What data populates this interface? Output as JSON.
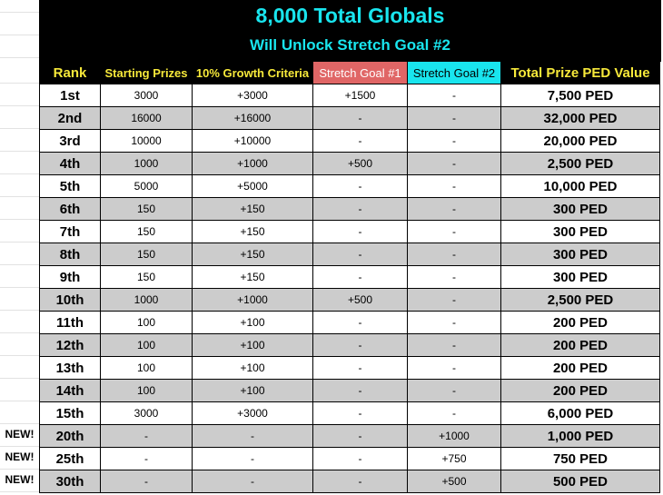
{
  "banner": {
    "title": "8,000 Total Globals",
    "subtitle": "Will Unlock Stretch Goal #2"
  },
  "headers": {
    "rank": "Rank",
    "starting": "Starting Prizes",
    "growth": "10% Growth Criteria",
    "sg1": "Stretch Goal #1",
    "sg2": "Stretch Goal #2",
    "total": "Total Prize PED Value"
  },
  "colors": {
    "accent_cyan": "#19e5ee",
    "header_yellow": "#f7e93a",
    "stretch1_red": "#e06666",
    "row_gray": "#cccccc"
  },
  "rows": [
    {
      "rank": "1st",
      "starting": "3000",
      "growth": "+3000",
      "sg1": "+1500",
      "sg2": "-",
      "total": "7,500 PED",
      "new": ""
    },
    {
      "rank": "2nd",
      "starting": "16000",
      "growth": "+16000",
      "sg1": "-",
      "sg2": "-",
      "total": "32,000 PED",
      "new": ""
    },
    {
      "rank": "3rd",
      "starting": "10000",
      "growth": "+10000",
      "sg1": "-",
      "sg2": "-",
      "total": "20,000 PED",
      "new": ""
    },
    {
      "rank": "4th",
      "starting": "1000",
      "growth": "+1000",
      "sg1": "+500",
      "sg2": "-",
      "total": "2,500 PED",
      "new": ""
    },
    {
      "rank": "5th",
      "starting": "5000",
      "growth": "+5000",
      "sg1": "-",
      "sg2": "-",
      "total": "10,000 PED",
      "new": ""
    },
    {
      "rank": "6th",
      "starting": "150",
      "growth": "+150",
      "sg1": "-",
      "sg2": "-",
      "total": "300 PED",
      "new": ""
    },
    {
      "rank": "7th",
      "starting": "150",
      "growth": "+150",
      "sg1": "-",
      "sg2": "-",
      "total": "300 PED",
      "new": ""
    },
    {
      "rank": "8th",
      "starting": "150",
      "growth": "+150",
      "sg1": "-",
      "sg2": "-",
      "total": "300 PED",
      "new": ""
    },
    {
      "rank": "9th",
      "starting": "150",
      "growth": "+150",
      "sg1": "-",
      "sg2": "-",
      "total": "300 PED",
      "new": ""
    },
    {
      "rank": "10th",
      "starting": "1000",
      "growth": "+1000",
      "sg1": "+500",
      "sg2": "-",
      "total": "2,500 PED",
      "new": ""
    },
    {
      "rank": "11th",
      "starting": "100",
      "growth": "+100",
      "sg1": "-",
      "sg2": "-",
      "total": "200 PED",
      "new": ""
    },
    {
      "rank": "12th",
      "starting": "100",
      "growth": "+100",
      "sg1": "-",
      "sg2": "-",
      "total": "200 PED",
      "new": ""
    },
    {
      "rank": "13th",
      "starting": "100",
      "growth": "+100",
      "sg1": "-",
      "sg2": "-",
      "total": "200 PED",
      "new": ""
    },
    {
      "rank": "14th",
      "starting": "100",
      "growth": "+100",
      "sg1": "-",
      "sg2": "-",
      "total": "200 PED",
      "new": ""
    },
    {
      "rank": "15th",
      "starting": "3000",
      "growth": "+3000",
      "sg1": "-",
      "sg2": "-",
      "total": "6,000 PED",
      "new": ""
    },
    {
      "rank": "20th",
      "starting": "-",
      "growth": "-",
      "sg1": "-",
      "sg2": "+1000",
      "total": "1,000 PED",
      "new": "NEW!"
    },
    {
      "rank": "25th",
      "starting": "-",
      "growth": "-",
      "sg1": "-",
      "sg2": "+750",
      "total": "750 PED",
      "new": "NEW!"
    },
    {
      "rank": "30th",
      "starting": "-",
      "growth": "-",
      "sg1": "-",
      "sg2": "+500",
      "total": "500 PED",
      "new": "NEW!"
    }
  ]
}
